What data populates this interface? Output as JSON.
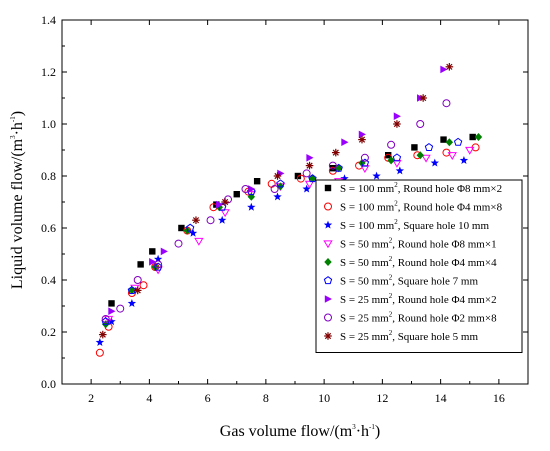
{
  "chart_data": {
    "type": "scatter",
    "xlabel": "Gas volume flow/(m",
    "xlabel_sup": "3",
    "xlabel_mid": "·h",
    "xlabel_sup2": "-1",
    "xlabel_end": ")",
    "ylabel": "Liquid volume flow/(m",
    "ylabel_sup": "3",
    "ylabel_mid": "·h",
    "ylabel_sup2": "-1",
    "ylabel_end": ")",
    "xlim": [
      1,
      17
    ],
    "ylim": [
      0,
      1.4
    ],
    "x_ticks": [
      "2",
      "4",
      "6",
      "8",
      "10",
      "12",
      "14",
      "16"
    ],
    "y_ticks": [
      "0.0",
      "0.2",
      "0.4",
      "0.6",
      "0.8",
      "1.0",
      "1.2",
      "1.4"
    ],
    "grid": false,
    "legend_position": "right",
    "series": [
      {
        "name": "S = 100 mm², Round hole Φ8 mm×2",
        "name_pre": "S = 100 mm",
        "name_post": ", Round hole Φ8 mm×2",
        "marker": "square-filled",
        "color": "#000000",
        "points": [
          [
            2.7,
            0.31
          ],
          [
            3.7,
            0.46
          ],
          [
            4.1,
            0.51
          ],
          [
            5.1,
            0.6
          ],
          [
            6.3,
            0.69
          ],
          [
            7.0,
            0.73
          ],
          [
            7.7,
            0.78
          ],
          [
            9.1,
            0.8
          ],
          [
            10.3,
            0.83
          ],
          [
            12.2,
            0.88
          ],
          [
            13.1,
            0.91
          ],
          [
            14.1,
            0.94
          ],
          [
            15.1,
            0.95
          ]
        ]
      },
      {
        "name": "S = 100 mm², Round hole Φ4 mm×8",
        "name_pre": "S = 100 mm",
        "name_post": ", Round hole Φ4 mm×8",
        "marker": "circle-open",
        "color": "#ff0000",
        "points": [
          [
            2.3,
            0.12
          ],
          [
            2.6,
            0.22
          ],
          [
            3.4,
            0.35
          ],
          [
            3.8,
            0.38
          ],
          [
            4.2,
            0.45
          ],
          [
            5.3,
            0.59
          ],
          [
            6.2,
            0.68
          ],
          [
            7.4,
            0.74
          ],
          [
            8.2,
            0.77
          ],
          [
            9.2,
            0.79
          ],
          [
            10.3,
            0.82
          ],
          [
            11.2,
            0.84
          ],
          [
            12.2,
            0.87
          ],
          [
            13.2,
            0.88
          ],
          [
            14.2,
            0.89
          ],
          [
            15.2,
            0.91
          ]
        ]
      },
      {
        "name": "S = 100 mm², Square hole 10 mm",
        "name_pre": "S = 100 mm",
        "name_post": ", Square hole 10 mm",
        "marker": "star",
        "color": "#0000ff",
        "points": [
          [
            2.3,
            0.16
          ],
          [
            2.7,
            0.24
          ],
          [
            3.4,
            0.31
          ],
          [
            4.3,
            0.48
          ],
          [
            5.5,
            0.58
          ],
          [
            6.5,
            0.63
          ],
          [
            7.5,
            0.68
          ],
          [
            8.4,
            0.72
          ],
          [
            9.4,
            0.75
          ],
          [
            10.7,
            0.79
          ],
          [
            11.8,
            0.8
          ],
          [
            12.6,
            0.82
          ],
          [
            13.8,
            0.85
          ],
          [
            14.8,
            0.86
          ]
        ]
      },
      {
        "name": "S = 50 mm², Round hole Φ8 mm×1",
        "name_pre": "S = 50 mm",
        "name_post": ", Round hole Φ8 mm×1",
        "marker": "triangle-down-open",
        "color": "#ff00ff",
        "points": [
          [
            2.6,
            0.25
          ],
          [
            3.5,
            0.37
          ],
          [
            4.3,
            0.44
          ],
          [
            5.7,
            0.55
          ],
          [
            6.6,
            0.66
          ],
          [
            7.5,
            0.73
          ],
          [
            8.5,
            0.76
          ],
          [
            9.5,
            0.77
          ],
          [
            10.5,
            0.78
          ],
          [
            11.4,
            0.83
          ],
          [
            12.5,
            0.85
          ],
          [
            13.5,
            0.87
          ],
          [
            14.4,
            0.88
          ],
          [
            15.0,
            0.9
          ]
        ]
      },
      {
        "name": "S = 50 mm², Round hole Φ4 mm×4",
        "name_pre": "S = 50 mm",
        "name_post": ", Round hole Φ4 mm×4",
        "marker": "diamond-filled",
        "color": "#008000",
        "points": [
          [
            2.5,
            0.23
          ],
          [
            3.4,
            0.36
          ],
          [
            4.2,
            0.45
          ],
          [
            5.3,
            0.59
          ],
          [
            6.4,
            0.68
          ],
          [
            7.5,
            0.72
          ],
          [
            8.5,
            0.76
          ],
          [
            9.6,
            0.79
          ],
          [
            10.5,
            0.83
          ],
          [
            11.3,
            0.85
          ],
          [
            12.3,
            0.86
          ],
          [
            13.3,
            0.88
          ],
          [
            14.3,
            0.93
          ],
          [
            15.3,
            0.95
          ]
        ]
      },
      {
        "name": "S = 50 mm², Square hole 7 mm",
        "name_pre": "S = 50 mm",
        "name_post": ", Square hole 7 mm",
        "marker": "pentagon-open",
        "color": "#0000ff",
        "points": [
          [
            2.5,
            0.24
          ],
          [
            3.4,
            0.36
          ],
          [
            4.3,
            0.45
          ],
          [
            5.4,
            0.6
          ],
          [
            6.5,
            0.68
          ],
          [
            7.5,
            0.74
          ],
          [
            8.5,
            0.77
          ],
          [
            9.6,
            0.79
          ],
          [
            10.5,
            0.83
          ],
          [
            11.4,
            0.85
          ],
          [
            12.5,
            0.87
          ],
          [
            13.6,
            0.91
          ],
          [
            14.6,
            0.93
          ]
        ]
      },
      {
        "name": "S = 25 mm², Round hole Φ4 mm×2",
        "name_pre": "S = 25 mm",
        "name_post": ", Round hole Φ4 mm×2",
        "marker": "triangle-right-filled",
        "color": "#9900ff",
        "points": [
          [
            2.7,
            0.28
          ],
          [
            4.1,
            0.47
          ],
          [
            4.5,
            0.51
          ],
          [
            6.4,
            0.69
          ],
          [
            7.5,
            0.75
          ],
          [
            8.5,
            0.81
          ],
          [
            9.5,
            0.87
          ],
          [
            10.7,
            0.93
          ],
          [
            11.3,
            0.96
          ],
          [
            12.5,
            1.03
          ],
          [
            13.3,
            1.1
          ],
          [
            14.1,
            1.21
          ]
        ]
      },
      {
        "name": "S = 25 mm², Round hole Φ2 mm×8",
        "name_pre": "S = 25 mm",
        "name_post": ", Round hole Φ2 mm×8",
        "marker": "circle-open",
        "color": "#8000c0",
        "points": [
          [
            2.5,
            0.25
          ],
          [
            3.0,
            0.29
          ],
          [
            3.6,
            0.4
          ],
          [
            4.3,
            0.46
          ],
          [
            5.0,
            0.54
          ],
          [
            6.1,
            0.63
          ],
          [
            6.7,
            0.71
          ],
          [
            7.3,
            0.75
          ],
          [
            8.3,
            0.75
          ],
          [
            9.4,
            0.81
          ],
          [
            10.3,
            0.84
          ],
          [
            11.4,
            0.87
          ],
          [
            12.3,
            0.92
          ],
          [
            13.3,
            1.0
          ],
          [
            14.2,
            1.08
          ]
        ]
      },
      {
        "name": "S = 25 mm², Square hole 5 mm",
        "name_pre": "S = 25 mm",
        "name_post": ", Square hole 5 mm",
        "marker": "asterisk",
        "color": "#800000",
        "points": [
          [
            2.4,
            0.19
          ],
          [
            3.6,
            0.36
          ],
          [
            5.6,
            0.63
          ],
          [
            6.6,
            0.7
          ],
          [
            8.4,
            0.8
          ],
          [
            9.5,
            0.84
          ],
          [
            10.4,
            0.89
          ],
          [
            11.3,
            0.94
          ],
          [
            12.5,
            1.0
          ],
          [
            13.4,
            1.1
          ],
          [
            14.3,
            1.22
          ]
        ]
      }
    ]
  }
}
